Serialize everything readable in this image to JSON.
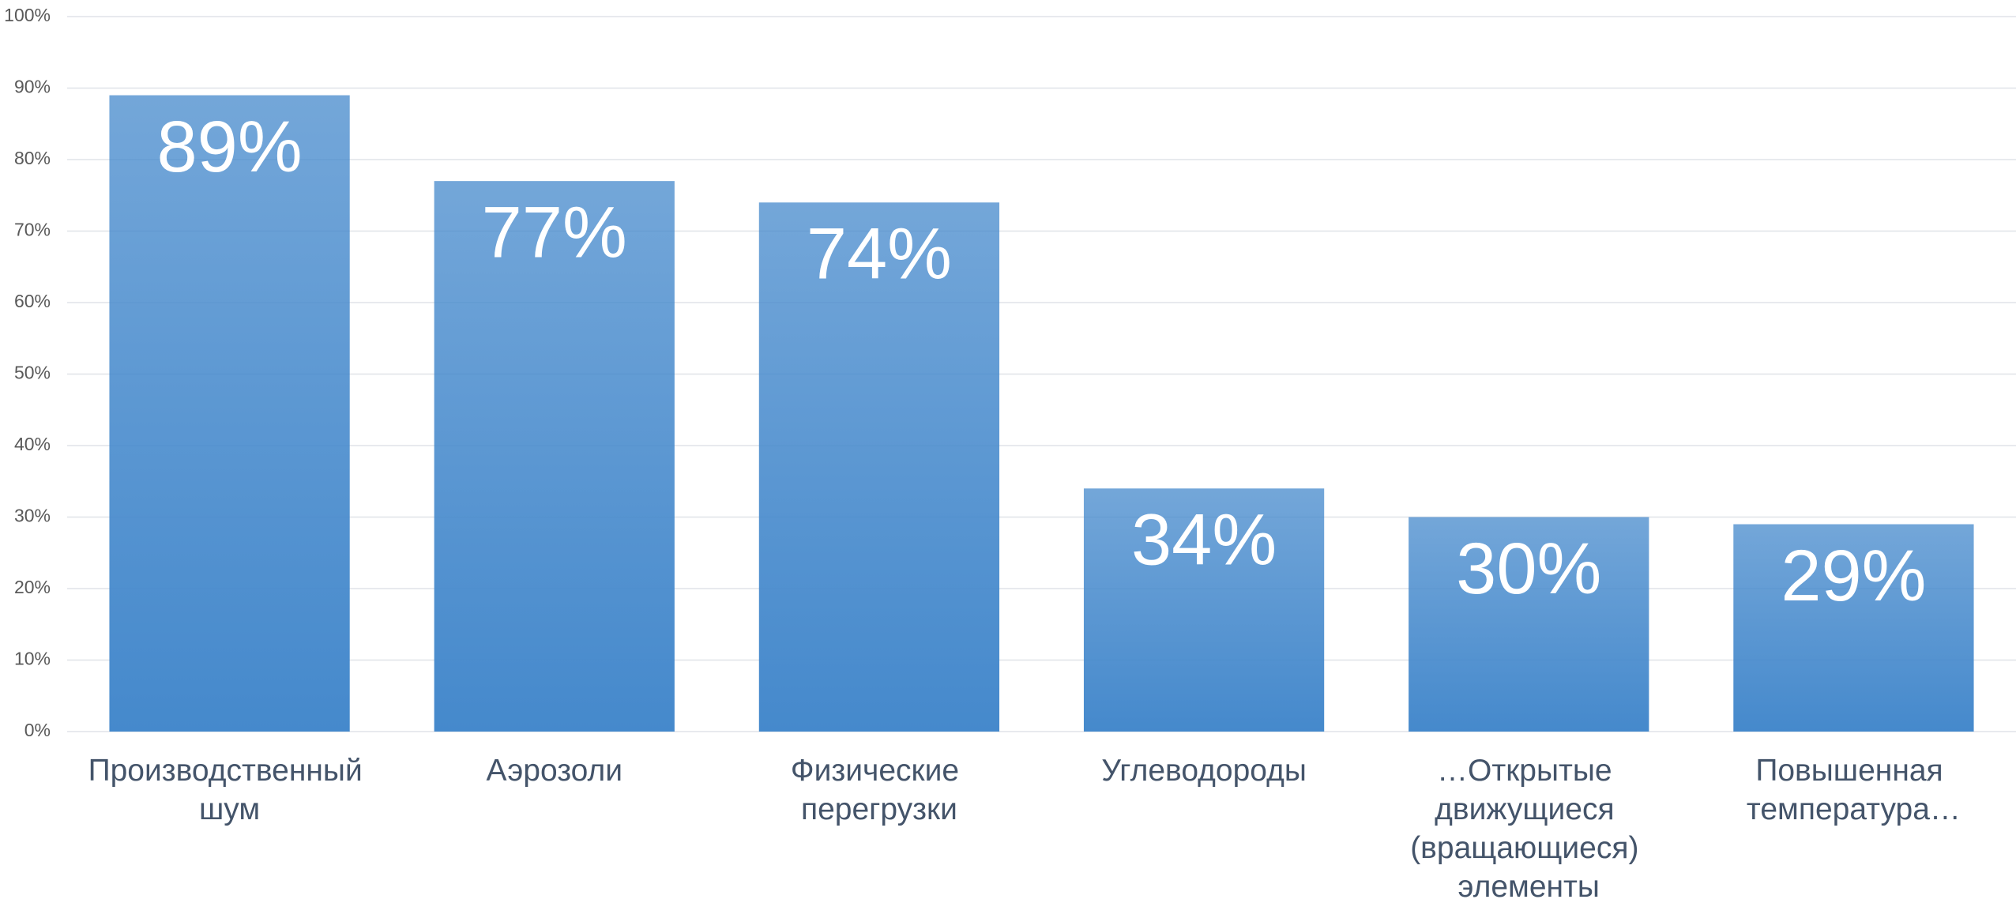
{
  "chart_data": {
    "type": "bar",
    "categories": [
      "Производственный шум",
      "Аэрозоли",
      "Физические перегрузки",
      "Углеводороды",
      "…Открытые движущиеся (вращающиеся) элементы",
      "Повышенная температура…"
    ],
    "values": [
      89,
      77,
      74,
      34,
      30,
      29
    ],
    "value_labels": [
      "89%",
      "77%",
      "74%",
      "34%",
      "30%",
      "29%"
    ],
    "color": "#4589cc",
    "ylim": [
      0,
      100
    ],
    "yticks": [
      {
        "value": 0,
        "label": "0%"
      },
      {
        "value": 10,
        "label": "10%"
      },
      {
        "value": 20,
        "label": "20%"
      },
      {
        "value": 30,
        "label": "30%"
      },
      {
        "value": 40,
        "label": "40%"
      },
      {
        "value": 50,
        "label": "50%"
      },
      {
        "value": 60,
        "label": "60%"
      },
      {
        "value": 70,
        "label": "70%"
      },
      {
        "value": 80,
        "label": "80%"
      },
      {
        "value": 90,
        "label": "90%"
      },
      {
        "value": 100,
        "label": "100%"
      }
    ],
    "grid": true
  }
}
